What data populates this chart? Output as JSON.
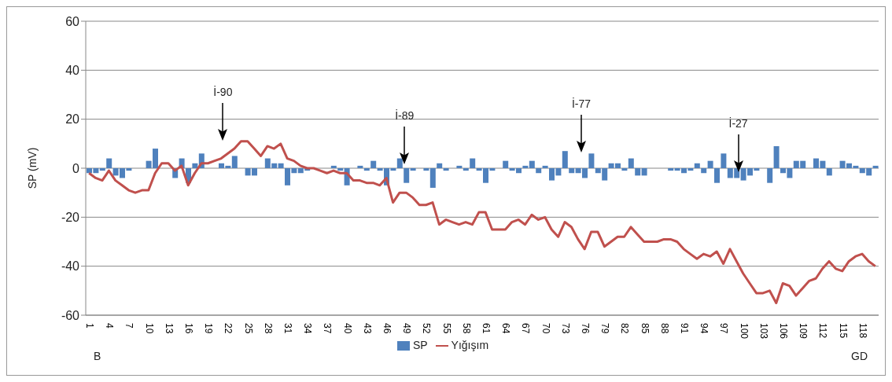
{
  "chart_data": {
    "type": "bar",
    "ylabel": "SP (mV)",
    "categories": [
      "1",
      null,
      null,
      "4",
      null,
      null,
      "7",
      null,
      null,
      "10",
      null,
      null,
      "13",
      null,
      null,
      "16",
      null,
      null,
      "19",
      null,
      null,
      "22",
      null,
      null,
      "25",
      null,
      null,
      "28",
      null,
      null,
      "31",
      null,
      null,
      "34",
      null,
      null,
      "37",
      null,
      null,
      "40",
      null,
      null,
      "43",
      null,
      null,
      "46",
      null,
      null,
      "49",
      null,
      null,
      "52",
      null,
      null,
      "55",
      null,
      null,
      "58",
      null,
      null,
      "61",
      null,
      null,
      "64",
      null,
      null,
      "67",
      null,
      null,
      "70",
      null,
      null,
      "73",
      null,
      null,
      "76",
      null,
      null,
      "79",
      null,
      null,
      "82",
      null,
      null,
      "85",
      null,
      null,
      "88",
      null,
      null,
      "91",
      null,
      null,
      "94",
      null,
      null,
      "97",
      null,
      null,
      "100",
      null,
      null,
      "103",
      null,
      null,
      "106",
      null,
      null,
      "109",
      null,
      null,
      "112",
      null,
      null,
      "115",
      null,
      null,
      "118",
      null,
      null
    ],
    "series": [
      {
        "name": "SP",
        "color": "#4f81bd",
        "values": [
          -2,
          -2,
          -1,
          4,
          -3,
          -4,
          -1,
          0,
          0,
          3,
          8,
          0,
          0,
          -4,
          4,
          -6,
          2,
          6,
          0,
          0,
          2,
          1,
          5,
          0,
          -3,
          -3,
          0,
          4,
          2,
          2,
          -7,
          -2,
          -2,
          -1,
          0,
          0,
          0,
          1,
          -1,
          -7,
          0,
          1,
          -1,
          3,
          -1,
          -7,
          -1,
          4,
          -6,
          -1,
          0,
          -1,
          -8,
          2,
          -1,
          0,
          1,
          -1,
          4,
          -1,
          -6,
          -1,
          0,
          3,
          -1,
          -2,
          1,
          3,
          -2,
          1,
          -5,
          -3,
          7,
          -2,
          -2,
          -4,
          6,
          -2,
          -5,
          2,
          2,
          -1,
          4,
          -3,
          -3,
          0,
          0,
          0,
          -1,
          -1,
          -2,
          -1,
          2,
          -2,
          3,
          -6,
          6,
          -4,
          -4,
          -5,
          -3,
          -1,
          0,
          -6,
          9,
          -2,
          -4,
          3,
          3,
          0,
          4,
          3,
          -3,
          0,
          3,
          2,
          1,
          -2,
          -3,
          1
        ]
      },
      {
        "name": "Yığışım",
        "type": "line",
        "color": "#c0504d",
        "values": [
          -2,
          -4,
          -5,
          -1,
          -5,
          -7,
          -9,
          -10,
          -9,
          -9,
          -2,
          2,
          2,
          -1,
          1,
          -7,
          -2,
          2,
          2,
          3,
          4,
          6,
          8,
          11,
          11,
          8,
          5,
          9,
          8,
          10,
          4,
          3,
          1,
          0,
          0,
          -1,
          -2,
          -1,
          -2,
          -2,
          -5,
          -5,
          -6,
          -6,
          -7,
          -4,
          -14,
          -10,
          -10,
          -12,
          -15,
          -15,
          -14,
          -23,
          -21,
          -22,
          -23,
          -22,
          -23,
          -18,
          -18,
          -25,
          -25,
          -25,
          -22,
          -21,
          -23,
          -19,
          -21,
          -20,
          -25,
          -28,
          -22,
          -24,
          -29,
          -33,
          -26,
          -26,
          -32,
          -30,
          -28,
          -28,
          -24,
          -27,
          -30,
          -30,
          -30,
          -29,
          -29,
          -30,
          -33,
          -35,
          -37,
          -35,
          -36,
          -34,
          -39,
          -33,
          -38,
          -43,
          -47,
          -51,
          -51,
          -50,
          -55,
          -47,
          -48,
          -52,
          -49,
          -46,
          -45,
          -41,
          -38,
          -41,
          -42,
          -38,
          -36,
          -35,
          -38,
          -40
        ]
      }
    ],
    "ylim": [
      -60,
      60
    ],
    "yticks": [
      -60,
      -40,
      -20,
      0,
      20,
      40,
      60
    ],
    "grid": "y",
    "legend": "bottom",
    "annotations": [
      "İ-90",
      "İ-89",
      "İ-77",
      "İ-27",
      "B",
      "GD"
    ]
  }
}
